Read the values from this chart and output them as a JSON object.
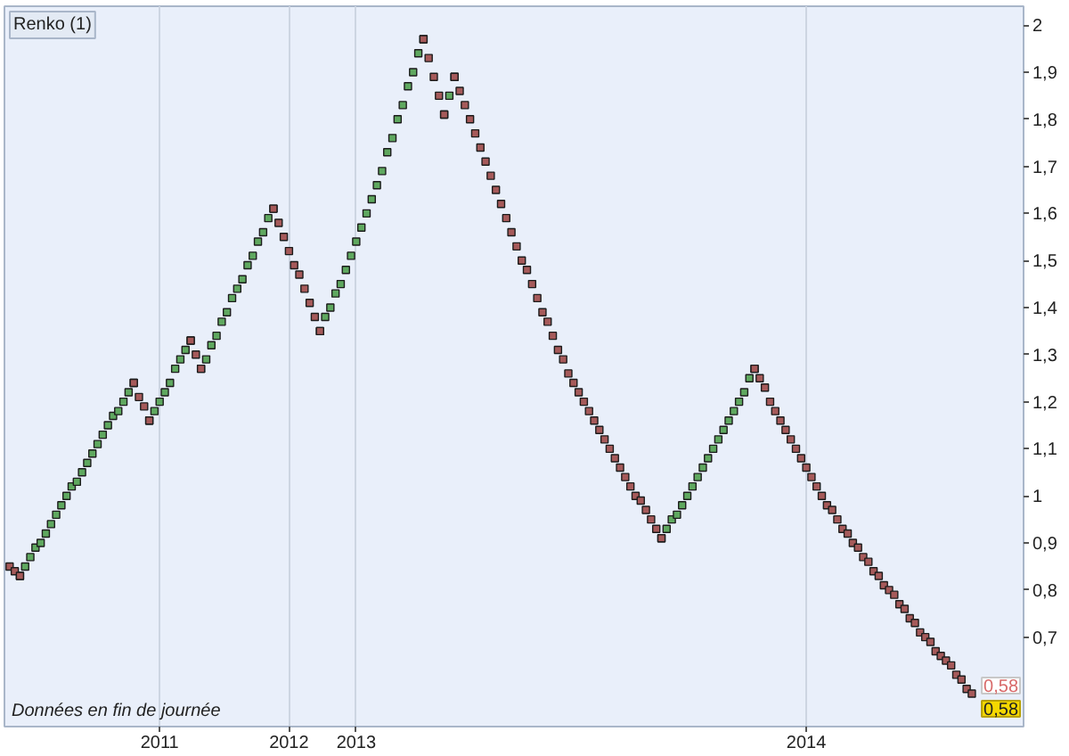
{
  "chart_data": {
    "type": "scatter",
    "title": "Renko (1)",
    "marker": "square",
    "categories": [
      null,
      null,
      null,
      null,
      null,
      null,
      null,
      null,
      null,
      null,
      null,
      null,
      null,
      null,
      null,
      null,
      null,
      null,
      null,
      null,
      null,
      null,
      null,
      null,
      null,
      null,
      null,
      null,
      null,
      "2011",
      null,
      null,
      null,
      null,
      null,
      null,
      null,
      null,
      null,
      null,
      null,
      null,
      null,
      null,
      null,
      null,
      null,
      null,
      null,
      null,
      null,
      null,
      null,
      null,
      "2012",
      null,
      null,
      null,
      null,
      null,
      null,
      null,
      null,
      null,
      null,
      null,
      null,
      "2013",
      null,
      null,
      null,
      null,
      null,
      null,
      null,
      null,
      null,
      null,
      null,
      null,
      null,
      null,
      null,
      null,
      null,
      null,
      null,
      null,
      null,
      null,
      null,
      null,
      null,
      null,
      null,
      null,
      null,
      null,
      null,
      null,
      null,
      null,
      null,
      null,
      null,
      null,
      null,
      null,
      null,
      null,
      null,
      null,
      null,
      null,
      null,
      null,
      null,
      null,
      null,
      null,
      null,
      null,
      null,
      null,
      null,
      null,
      null,
      null,
      null,
      null,
      null,
      null,
      null,
      null,
      null,
      null,
      null,
      null,
      null,
      null,
      null,
      null,
      null,
      null,
      null,
      null,
      null,
      null,
      null,
      null,
      null,
      null,
      null,
      null,
      "2014",
      null,
      null,
      null,
      null,
      null,
      null,
      null,
      null,
      null,
      null,
      null,
      null,
      null,
      null,
      null,
      null,
      null,
      null,
      null,
      null,
      null,
      null,
      null,
      null,
      null,
      null,
      null,
      null,
      null,
      null,
      null,
      null
    ],
    "ylim": [
      0.51,
      2.04
    ],
    "yticks": [
      {
        "value": 0.7,
        "label": "0,7"
      },
      {
        "value": 0.8,
        "label": "0,8"
      },
      {
        "value": 0.9,
        "label": "0,9"
      },
      1,
      {
        "value": 1.1,
        "label": "1,1"
      },
      {
        "value": 1.2,
        "label": "1,2"
      },
      {
        "value": 1.3,
        "label": "1,3"
      },
      {
        "value": 1.4,
        "label": "1,4"
      },
      {
        "value": 1.5,
        "label": "1,5"
      },
      {
        "value": 1.6,
        "label": "1,6"
      },
      {
        "value": 1.7,
        "label": "1,7"
      },
      {
        "value": 1.8,
        "label": "1,8"
      },
      {
        "value": 1.9,
        "label": "1,9"
      },
      2
    ],
    "grid": "x",
    "series": [
      {
        "color": "#5fa85f",
        "values": [
          null,
          null,
          0.83,
          0.85,
          0.87,
          0.89,
          0.9,
          0.92,
          0.94,
          0.96,
          0.98,
          1.0,
          1.02,
          1.03,
          1.05,
          1.07,
          1.09,
          1.11,
          1.13,
          1.15,
          1.17,
          1.18,
          1.2,
          1.22,
          1.24,
          null,
          null,
          1.16,
          1.18,
          1.2,
          1.22,
          1.24,
          1.27,
          1.29,
          1.31,
          1.33,
          null,
          1.27,
          1.29,
          1.32,
          1.34,
          1.37,
          1.39,
          1.42,
          1.44,
          1.46,
          1.49,
          1.51,
          1.54,
          1.56,
          1.59,
          1.61,
          null,
          null,
          null,
          null,
          null,
          null,
          null,
          null,
          1.35,
          1.38,
          1.4,
          1.43,
          1.45,
          1.48,
          1.51,
          1.54,
          1.57,
          1.6,
          1.63,
          1.66,
          1.69,
          1.73,
          1.76,
          1.8,
          1.83,
          1.87,
          1.9,
          1.94,
          1.97,
          null,
          null,
          null,
          1.81,
          1.85,
          1.89,
          null,
          null,
          null,
          null,
          null,
          null,
          null,
          null,
          null,
          null,
          null,
          null,
          null,
          null,
          null,
          null,
          null,
          null,
          null,
          null,
          null,
          null,
          null,
          null,
          null,
          null,
          null,
          null,
          null,
          null,
          null,
          null,
          null,
          null,
          null,
          null,
          null,
          null,
          null,
          0.91,
          0.93,
          0.95,
          0.96,
          0.98,
          1.0,
          1.02,
          1.04,
          1.06,
          1.08,
          1.1,
          1.12,
          1.14,
          1.16,
          1.18,
          1.2,
          1.22,
          1.25,
          1.27,
          null,
          null,
          null,
          null,
          null,
          null,
          null,
          null,
          null,
          null,
          null,
          null,
          null,
          null,
          null,
          null,
          null,
          null,
          null,
          null,
          null,
          null,
          null,
          null,
          null,
          null,
          null,
          null,
          null,
          null,
          null,
          null,
          null,
          null,
          null,
          null,
          null,
          null,
          null,
          null,
          null,
          null
        ]
      },
      {
        "color": "#a65a5a",
        "values": [
          0.85,
          0.84,
          0.83,
          null,
          null,
          null,
          null,
          null,
          null,
          null,
          null,
          null,
          null,
          null,
          null,
          null,
          null,
          null,
          null,
          null,
          null,
          null,
          null,
          null,
          1.24,
          1.21,
          1.19,
          1.16,
          null,
          null,
          null,
          null,
          null,
          null,
          null,
          1.33,
          1.3,
          1.27,
          null,
          null,
          null,
          null,
          null,
          null,
          null,
          null,
          null,
          null,
          null,
          null,
          null,
          1.61,
          1.58,
          1.55,
          1.52,
          1.49,
          1.47,
          1.44,
          1.41,
          1.38,
          1.35,
          null,
          null,
          null,
          null,
          null,
          null,
          null,
          null,
          null,
          null,
          null,
          null,
          null,
          null,
          null,
          null,
          null,
          null,
          null,
          1.97,
          1.93,
          1.89,
          1.85,
          1.81,
          null,
          1.89,
          1.86,
          1.83,
          1.8,
          1.77,
          1.74,
          1.71,
          1.68,
          1.65,
          1.62,
          1.59,
          1.56,
          1.53,
          1.5,
          1.48,
          1.45,
          1.42,
          1.39,
          1.37,
          1.34,
          1.31,
          1.29,
          1.26,
          1.24,
          1.22,
          1.2,
          1.18,
          1.16,
          1.14,
          1.12,
          1.1,
          1.08,
          1.06,
          1.04,
          1.02,
          1.0,
          0.99,
          0.97,
          0.95,
          0.93,
          0.91,
          null,
          null,
          null,
          null,
          null,
          null,
          null,
          null,
          null,
          null,
          null,
          null,
          null,
          null,
          null,
          null,
          null,
          1.27,
          1.25,
          1.23,
          1.2,
          1.18,
          1.16,
          1.14,
          1.12,
          1.1,
          1.08,
          1.06,
          1.04,
          1.02,
          1.0,
          0.98,
          0.97,
          0.95,
          0.93,
          0.92,
          0.9,
          0.89,
          0.87,
          0.86,
          0.84,
          0.83,
          0.81,
          0.8,
          0.79,
          0.77,
          0.76,
          0.74,
          0.73,
          0.71,
          0.7,
          0.69,
          0.67,
          0.66,
          0.65,
          0.64,
          0.62,
          0.61,
          0.59,
          0.58
        ]
      }
    ],
    "annotations": [
      "Données en fin de journée",
      "0,58",
      "0,58"
    ]
  }
}
